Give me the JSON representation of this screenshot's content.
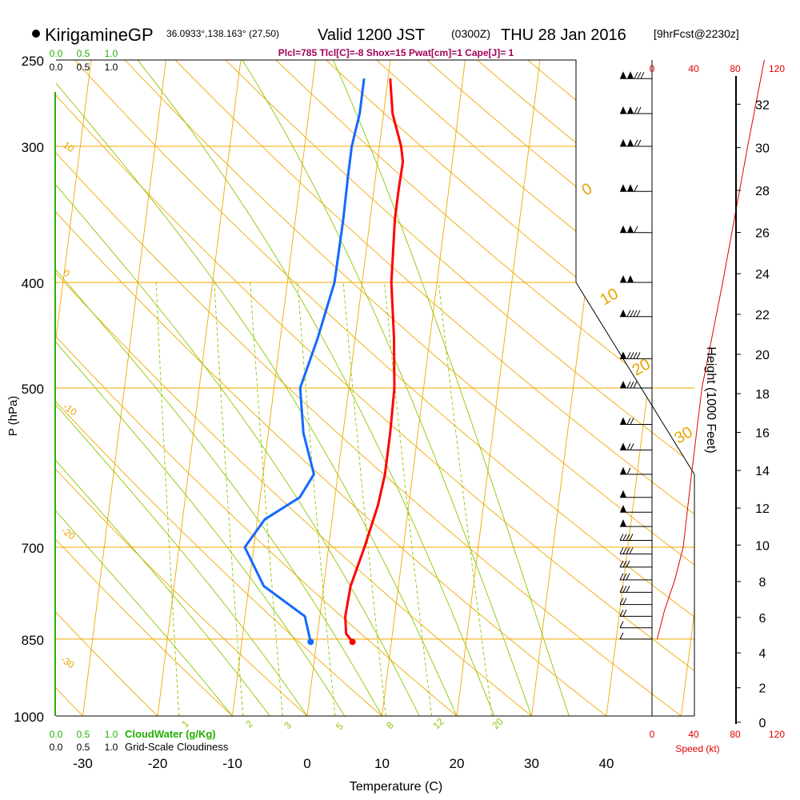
{
  "header": {
    "site": "KirigamineGP",
    "coords": "36.0933°,138.163° (27,50)",
    "valid": "Valid 1200 JST",
    "utc": "(0300Z)",
    "date": "THU 28 Jan 2016",
    "forecast": "[9hrFcst@2230z]",
    "indices": "Plcl=785 Tlcl[C]=-8 Shox=15 Pwat[cm]=1 Cape[J]= 1"
  },
  "chart_data": {
    "type": "skew-t",
    "title": "KirigamineGP Valid 1200 JST THU 28 Jan 2016",
    "xlabel": "Temperature (C)",
    "ylabel": "P (hPa)",
    "right_axis_label": "Height (1000 Feet)",
    "temp_ticks": [
      "-30",
      "-20",
      "-10",
      "0",
      "10",
      "20",
      "30",
      "40"
    ],
    "temp_tick_values": [
      -30,
      -20,
      -10,
      0,
      10,
      20,
      30,
      40
    ],
    "pressure_ticks": [
      "250",
      "300",
      "400",
      "500",
      "700",
      "850",
      "1000"
    ],
    "pressure_tick_values": [
      250,
      300,
      400,
      500,
      700,
      850,
      1000
    ],
    "height_ticks": [
      "0",
      "2",
      "4",
      "6",
      "8",
      "10",
      "12",
      "14",
      "16",
      "18",
      "20",
      "22",
      "24",
      "26",
      "28",
      "30",
      "32"
    ],
    "height_tick_values": [
      0,
      2,
      4,
      6,
      8,
      10,
      12,
      14,
      16,
      18,
      20,
      22,
      24,
      26,
      28,
      30,
      32
    ],
    "speed_ticks": [
      "0",
      "40",
      "80",
      "120"
    ],
    "speed_label": "Speed (kt)",
    "cloudwater_label": "CloudWater (g/Kg)",
    "cloudwater_ticks": [
      "0.0",
      "0.5",
      "1.0"
    ],
    "cloudiness_label": "Grid-Scale Cloudiness",
    "cloudiness_ticks": [
      "0.0",
      "0.5",
      "1.0"
    ],
    "adiabat_labels": [
      "10",
      "0",
      "-10",
      "-20",
      "-30",
      "0",
      "10",
      "20",
      "30"
    ],
    "mixing_ratio_labels": [
      "1",
      "2",
      "3",
      "5",
      "8",
      "12",
      "20"
    ],
    "temperature_profile": {
      "name": "Temperature",
      "color": "#ff0000",
      "x": [
        4.8,
        3.8,
        3.4,
        3.6,
        4.8,
        5.9,
        6.3,
        6.3,
        6.1,
        5.2,
        3.9,
        3.3,
        3.3,
        3.4,
        2.9,
        1.2,
        0.3
      ],
      "y": [
        855,
        840,
        810,
        760,
        700,
        640,
        600,
        550,
        500,
        450,
        400,
        350,
        330,
        310,
        300,
        280,
        260
      ]
    },
    "dewpoint_profile": {
      "name": "Dewpoint",
      "color": "#1469ff",
      "x": [
        -0.8,
        -1.2,
        -2.0,
        -8.0,
        -11.2,
        -9.0,
        -4.7,
        -3.2,
        -5.3,
        -6.5,
        -5.0,
        -3.7,
        -3.6,
        -3.7,
        -3.7,
        -3.2,
        -3.2
      ],
      "y": [
        855,
        840,
        810,
        760,
        700,
        660,
        630,
        600,
        550,
        500,
        450,
        400,
        350,
        320,
        300,
        280,
        260
      ]
    },
    "wind_speed_kt": {
      "name": "Wind speed",
      "color": "#e00000",
      "x": [
        5,
        12,
        22,
        30,
        38,
        48,
        68,
        92,
        108
      ],
      "y": [
        850,
        800,
        750,
        700,
        600,
        500,
        400,
        300,
        250
      ]
    },
    "wind_barb_pressures": [
      850,
      830,
      810,
      790,
      770,
      750,
      730,
      710,
      690,
      670,
      650,
      630,
      600,
      570,
      540,
      500,
      470,
      430,
      400,
      360,
      330,
      300,
      280,
      260
    ]
  }
}
